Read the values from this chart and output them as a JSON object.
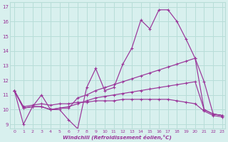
{
  "xlabel": "Windchill (Refroidissement éolien,°C)",
  "bg_color": "#d8f0ee",
  "grid_color": "#b8ddd8",
  "line_color": "#993399",
  "xlim": [
    -0.5,
    23.3
  ],
  "ylim": [
    8.7,
    17.3
  ],
  "yticks": [
    9,
    10,
    11,
    12,
    13,
    14,
    15,
    16,
    17
  ],
  "xticks": [
    0,
    1,
    2,
    3,
    4,
    5,
    6,
    7,
    8,
    9,
    10,
    11,
    12,
    13,
    14,
    15,
    16,
    17,
    18,
    19,
    20,
    21,
    22,
    23
  ],
  "lines": [
    {
      "x": [
        0,
        1,
        2,
        3,
        4,
        5,
        6,
        7,
        8,
        9,
        10,
        11,
        12,
        13,
        14,
        15,
        16,
        17,
        18,
        19,
        20,
        21,
        22,
        23
      ],
      "y": [
        11.3,
        9.0,
        10.2,
        11.0,
        10.0,
        10.0,
        9.3,
        8.7,
        11.5,
        12.8,
        11.3,
        11.5,
        13.1,
        14.2,
        16.1,
        15.5,
        16.8,
        16.8,
        16.0,
        14.8,
        13.5,
        11.9,
        9.7,
        9.6
      ]
    },
    {
      "x": [
        0,
        1,
        2,
        3,
        4,
        5,
        6,
        7,
        8,
        9,
        10,
        11,
        12,
        13,
        14,
        15,
        16,
        17,
        18,
        19,
        20,
        21,
        22,
        23
      ],
      "y": [
        11.3,
        10.1,
        10.2,
        10.2,
        10.0,
        10.1,
        10.1,
        10.8,
        11.0,
        11.3,
        11.5,
        11.7,
        11.9,
        12.1,
        12.3,
        12.5,
        12.7,
        12.9,
        13.1,
        13.3,
        13.5,
        10.0,
        9.7,
        9.6
      ]
    },
    {
      "x": [
        0,
        1,
        2,
        3,
        4,
        5,
        6,
        7,
        8,
        9,
        10,
        11,
        12,
        13,
        14,
        15,
        16,
        17,
        18,
        19,
        20,
        21,
        22,
        23
      ],
      "y": [
        11.3,
        10.1,
        10.2,
        10.2,
        10.0,
        10.1,
        10.2,
        10.4,
        10.6,
        10.8,
        10.9,
        11.0,
        11.1,
        11.2,
        11.3,
        11.4,
        11.5,
        11.6,
        11.7,
        11.8,
        11.9,
        10.0,
        9.7,
        9.6
      ]
    },
    {
      "x": [
        0,
        1,
        2,
        3,
        4,
        5,
        6,
        7,
        8,
        9,
        10,
        11,
        12,
        13,
        14,
        15,
        16,
        17,
        18,
        19,
        20,
        21,
        22,
        23
      ],
      "y": [
        11.3,
        10.2,
        10.3,
        10.4,
        10.3,
        10.4,
        10.4,
        10.5,
        10.5,
        10.6,
        10.6,
        10.6,
        10.7,
        10.7,
        10.7,
        10.7,
        10.7,
        10.7,
        10.6,
        10.5,
        10.4,
        9.9,
        9.6,
        9.5
      ]
    }
  ]
}
